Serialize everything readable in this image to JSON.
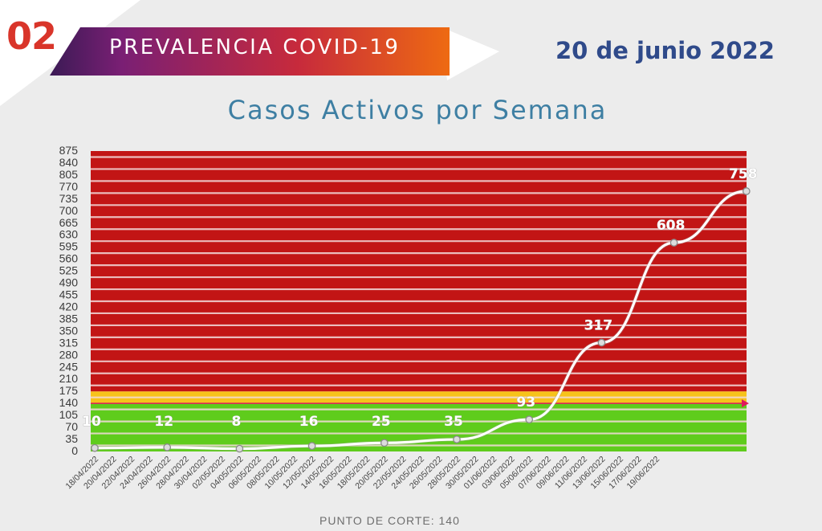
{
  "header": {
    "section_number": "02",
    "banner_title": "PREVALENCIA COVID-19",
    "date": "20 de junio 2022"
  },
  "chart_data": {
    "type": "line",
    "title": "Casos Activos por Semana",
    "xlabel": "",
    "ylabel": "",
    "ylim": [
      0,
      875
    ],
    "y_ticks": [
      0,
      35,
      70,
      105,
      140,
      175,
      210,
      245,
      280,
      315,
      350,
      385,
      420,
      455,
      490,
      525,
      560,
      595,
      630,
      665,
      700,
      735,
      770,
      805,
      840,
      875
    ],
    "x_tick_labels": [
      "18/04/2022",
      "20/04/2022",
      "22/04/2022",
      "24/04/2022",
      "26/04/2022",
      "28/04/2022",
      "30/04/2022",
      "02/05/2022",
      "04/05/2022",
      "06/05/2022",
      "08/05/2022",
      "10/05/2022",
      "12/05/2022",
      "14/05/2022",
      "16/05/2022",
      "18/05/2022",
      "20/05/2022",
      "22/05/2022",
      "24/05/2022",
      "26/05/2022",
      "28/05/2022",
      "30/05/2022",
      "01/06/2022",
      "03/06/2022",
      "05/06/2022",
      "07/06/2022",
      "09/06/2022",
      "11/06/2022",
      "13/06/2022",
      "15/06/2022",
      "17/06/2022",
      "19/06/2022"
    ],
    "series": [
      {
        "name": "Casos Activos",
        "x_index": [
          0,
          4,
          8,
          12,
          16,
          20,
          24,
          28,
          32,
          36
        ],
        "values": [
          10,
          12,
          8,
          16,
          25,
          35,
          93,
          317,
          608,
          758
        ],
        "data_labels": [
          "10",
          "12",
          "8",
          "16",
          "25",
          "35",
          "93",
          "317",
          "608",
          "758"
        ]
      }
    ],
    "bands": [
      {
        "name": "green",
        "from": 0,
        "to": 140,
        "color": "#5fcc1c"
      },
      {
        "name": "yellow",
        "from": 140,
        "to": 175,
        "color": "#f7c31a"
      },
      {
        "name": "red",
        "from": 175,
        "to": 875,
        "color": "#c21515"
      }
    ],
    "cutoff": {
      "value": 140,
      "label": "PUNTO DE CORTE: 140",
      "color": "#e0195d"
    },
    "line_color": "#ffffff"
  }
}
